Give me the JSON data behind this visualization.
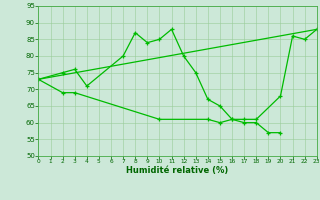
{
  "line1_x": [
    0,
    2,
    3,
    4,
    7,
    8,
    9,
    10,
    11,
    12,
    13,
    14,
    15,
    16,
    17,
    18,
    20,
    21,
    22,
    23
  ],
  "line1_y": [
    73,
    75,
    76,
    71,
    80,
    87,
    84,
    85,
    88,
    80,
    75,
    67,
    65,
    61,
    61,
    61,
    68,
    86,
    85,
    88
  ],
  "line2_x": [
    0,
    23
  ],
  "line2_y": [
    73,
    88
  ],
  "line3_x": [
    0,
    2,
    3,
    10,
    14,
    15,
    16,
    17,
    18,
    19,
    20
  ],
  "line3_y": [
    73,
    69,
    69,
    61,
    61,
    60,
    61,
    60,
    60,
    57,
    57
  ],
  "line_color": "#00bb00",
  "bg_color": "#cce8d8",
  "grid_color": "#99cc99",
  "xlabel": "Humidité relative (%)",
  "ylim": [
    50,
    95
  ],
  "xlim": [
    0,
    23
  ],
  "yticks": [
    50,
    55,
    60,
    65,
    70,
    75,
    80,
    85,
    90,
    95
  ],
  "xticks": [
    0,
    1,
    2,
    3,
    4,
    5,
    6,
    7,
    8,
    9,
    10,
    11,
    12,
    13,
    14,
    15,
    16,
    17,
    18,
    19,
    20,
    21,
    22,
    23
  ]
}
